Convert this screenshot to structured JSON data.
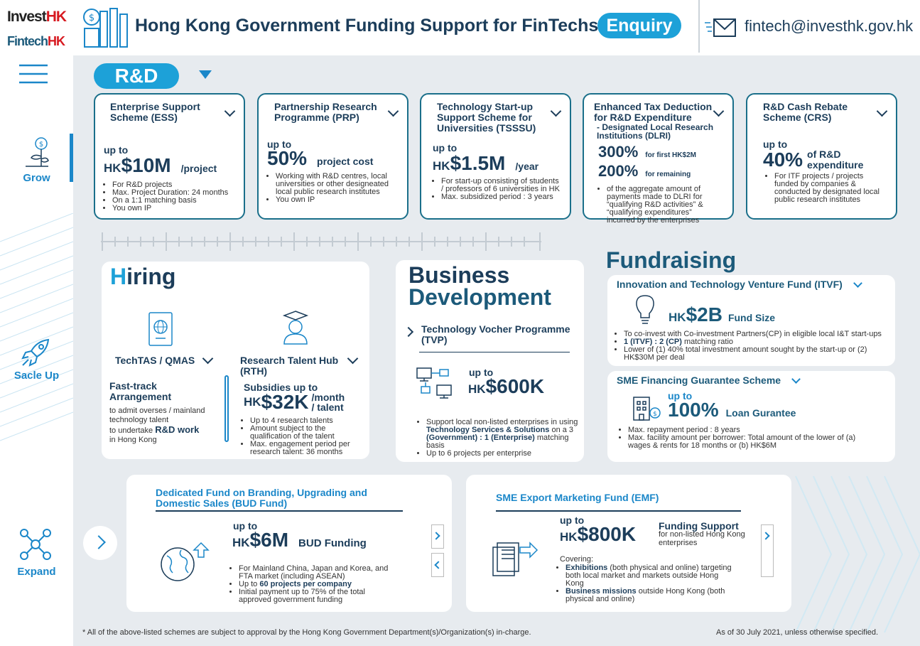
{
  "header": {
    "logo_invest": "Invest",
    "logo_invest_hk": "HK",
    "logo_fintech": "Fintech",
    "logo_fintech_hk": "HK",
    "title": "Hong Kong Government Funding Support for FinTechs",
    "enquiry": "Enquiry",
    "email": "fintech@investhk.gov.hk"
  },
  "nav": {
    "grow": "Grow",
    "scale": "Sacle Up",
    "expand": "Expand"
  },
  "rd": {
    "label": "R&D",
    "cards": [
      {
        "title": "Enterprise Support Scheme (ESS)",
        "upto": "up to",
        "hk": "HK",
        "amount": "$10M",
        "unit": "/project",
        "bullets": [
          "For R&D projects",
          "Max. Project Duration: 24 months",
          "On a 1:1 matching basis",
          "You own IP"
        ]
      },
      {
        "title": "Partnership Research Programme (PRP)",
        "upto": "up to",
        "amount": "50%",
        "unit": "project cost",
        "bullets": [
          "Working with R&D centres, local universities or other designeated local public research institutes",
          "You own IP"
        ]
      },
      {
        "title": "Technology Start-up Support Scheme for Universities (TSSSU)",
        "upto": "up to",
        "hk": "HK",
        "amount": "$1.5M",
        "unit": "/year",
        "bullets": [
          "For start-up consisting of students / professors of 6 universities in HK",
          "Max. subsidized period : 3 years"
        ]
      },
      {
        "title": "Enhanced Tax Deduction for R&D Expenditure",
        "subtitle": "- Designated Local Research Institutions (DLRI)",
        "amount1": "300%",
        "note1": "for first HK$2M",
        "amount2": "200%",
        "note2": "for remaining",
        "bullets": [
          "of the aggregate amount of payments made to DLRI for “qualifying R&D activities” & “qualifying expenditures” incurred by the enterprises"
        ]
      },
      {
        "title": "R&D Cash Rebate Scheme (CRS)",
        "upto": "up to",
        "amount": "40%",
        "unit": "of R&D expenditure",
        "bullets": [
          "For ITF projects / projects funded by companies & conducted by designated local public research institutes"
        ]
      }
    ]
  },
  "hiring": {
    "title_first": "H",
    "title_rest": "iring",
    "techtas": {
      "label": "TechTAS / QMAS",
      "heading": "Fast-track Arrangement",
      "desc1": "to admit overses / mainland technology talent",
      "desc2": "to undertake",
      "desc_bold": "R&D work",
      "desc3": "in Hong Kong"
    },
    "rth": {
      "label": "Research Talent Hub (RTH)",
      "subsidies": "Subsidies up to",
      "hk": "HK",
      "amount": "$32K",
      "unit1": "/month",
      "unit2": "/ talent",
      "bullets": [
        "Up to 4 research talents",
        "Amount subject to the qualification of the talent",
        "Max. engagement period per research talent: 36 months"
      ]
    }
  },
  "bizdev": {
    "title1": "Business",
    "title2": "Development",
    "programme": "Technology Vocher Programme (TVP)",
    "upto": "up to",
    "hk": "HK",
    "amount": "$600K",
    "b1a": "Support local non-listed enterprises in using",
    "b1b": "Technology Services & Solutions",
    "b1c": "on a 3",
    "b1d": "(Government) : 1 (Enterprise)",
    "b1e": "matching basis",
    "b2": "Up to 6 projects per enterprise"
  },
  "fund": {
    "title": "Fundraising",
    "itvf": {
      "title": "Innovation and Technology Venture Fund (ITVF)",
      "hk": "HK",
      "amount": "$2B",
      "unit": "Fund Size",
      "b1": "To co-invest with Co-investment Partners(CP) in eligible local I&T start-ups",
      "b2a": "1 (ITVF) : 2 (CP)",
      "b2b": "matching ratio",
      "b3": "Lower of (1) 40% total investment amount sought by the start-up or (2) HK$30M per deal"
    },
    "sfgs": {
      "title": "SME Financing Guarantee Scheme",
      "upto": "up to",
      "amount": "100%",
      "unit": "Loan Gurantee",
      "b1": "Max. repayment period : 8 years",
      "b2": "Max. facility amount per borrower: Total amount of the lower of (a) wages & rents for 18 months or (b) HK$6M"
    }
  },
  "bud": {
    "title": "Dedicated Fund on Branding, Upgrading and Domestic Sales (BUD Fund)",
    "upto": "up to",
    "hk": "HK",
    "amount": "$6M",
    "unit": "BUD Funding",
    "b1": "For Mainland China, Japan and Korea, and FTA market (including ASEAN)",
    "b2a": "Up to",
    "b2b": "60 projects per company",
    "b3": "Initial payment up to 75% of the total approved government funding"
  },
  "emf": {
    "title": "SME Export Marketing Fund (EMF)",
    "upto": "up to",
    "hk": "HK",
    "amount": "$800K",
    "unit": "Funding Support",
    "unit_sub": "for non-listed Hong Kong enterprises",
    "covering": "Covering:",
    "b1a": "Exhibitions",
    "b1b": "(both physical and online) targeting both local market and markets outside Hong Kong",
    "b2a": "Business missions",
    "b2b": "outside Hong Kong (both physical and online)"
  },
  "footer": {
    "note": "* All of the above-listed schemes are subject to approval by the Hong Kong Government Department(s)/Organization(s) in-charge.",
    "date": "As of 30 July 2021, unless otherwise specified."
  }
}
